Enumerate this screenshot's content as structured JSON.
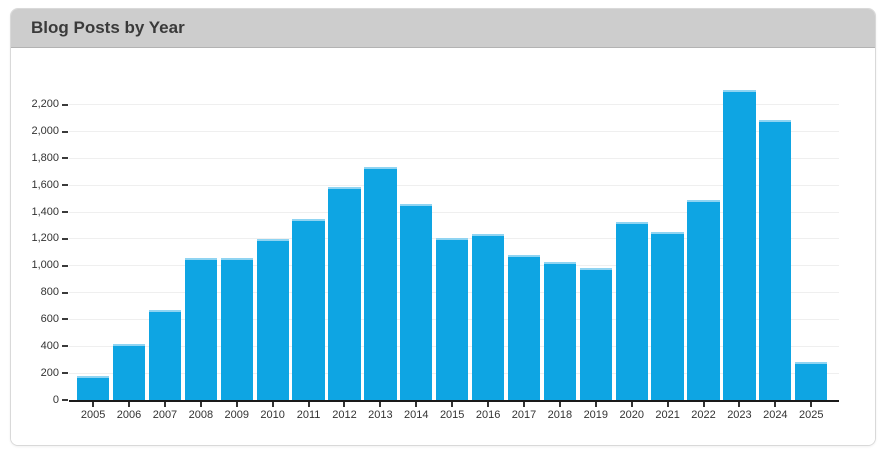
{
  "panel": {
    "title": "Blog Posts by Year"
  },
  "chart_data": {
    "type": "bar",
    "title": "Blog Posts by Year",
    "categories": [
      "2005",
      "2006",
      "2007",
      "2008",
      "2009",
      "2010",
      "2011",
      "2012",
      "2013",
      "2014",
      "2015",
      "2016",
      "2017",
      "2018",
      "2019",
      "2020",
      "2021",
      "2022",
      "2023",
      "2024",
      "2025"
    ],
    "values": [
      180,
      420,
      670,
      1060,
      1060,
      1200,
      1350,
      1590,
      1740,
      1460,
      1210,
      1240,
      1080,
      1030,
      980,
      1330,
      1250,
      1490,
      2310,
      2090,
      280
    ],
    "xlabel": "",
    "ylabel": "",
    "ylim": [
      0,
      2340
    ],
    "y_ticks": [
      0,
      200,
      400,
      600,
      800,
      1000,
      1200,
      1400,
      1600,
      1800,
      2000,
      2200
    ],
    "y_tick_labels": [
      "0",
      "200",
      "400",
      "600",
      "800",
      "1,000",
      "1,200",
      "1,400",
      "1,600",
      "1,800",
      "2,000",
      "2,200"
    ],
    "grid": true,
    "legend": false,
    "colors": {
      "bar": "#0ea5e3",
      "bar_top_edge": "#8fd4f2",
      "axis_line": "#1a1a1a",
      "gridline": "#efefef",
      "tick_text": "#333333",
      "header_bg": "#cdcdcd",
      "header_border": "#b3b3b3",
      "panel_border": "#d9d9d9",
      "title_text": "#3a3a3a"
    }
  }
}
